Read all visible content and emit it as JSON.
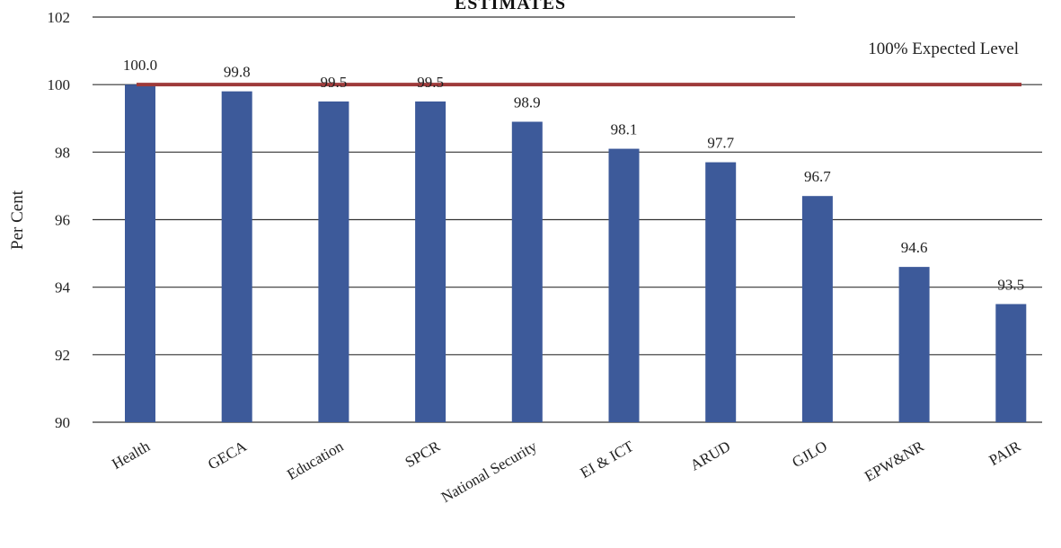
{
  "chart_data": {
    "type": "bar",
    "title": "ESTIMATES",
    "ylabel": "Per Cent",
    "xlabel": "",
    "ylim": [
      90,
      102
    ],
    "yticks": [
      90,
      92,
      94,
      96,
      98,
      100,
      102
    ],
    "grid": true,
    "categories": [
      "Health",
      "GECA",
      "Education",
      "SPCR",
      "National Security",
      "EI & ICT",
      "ARUD",
      "GJLO",
      "EPW&NR",
      "PAIR"
    ],
    "values": [
      100.0,
      99.8,
      99.5,
      99.5,
      98.9,
      98.1,
      97.7,
      96.7,
      94.6,
      93.5
    ],
    "value_labels": [
      "100.0",
      "99.8",
      "99.5",
      "99.5",
      "98.9",
      "98.1",
      "97.7",
      "96.7",
      "94.6",
      "93.5"
    ],
    "reference_line": {
      "value": 100,
      "label": "100% Expected Level",
      "color": "#9e3a3a"
    },
    "colors": {
      "bar": "#3d5a9a",
      "grid": "#333333"
    }
  }
}
